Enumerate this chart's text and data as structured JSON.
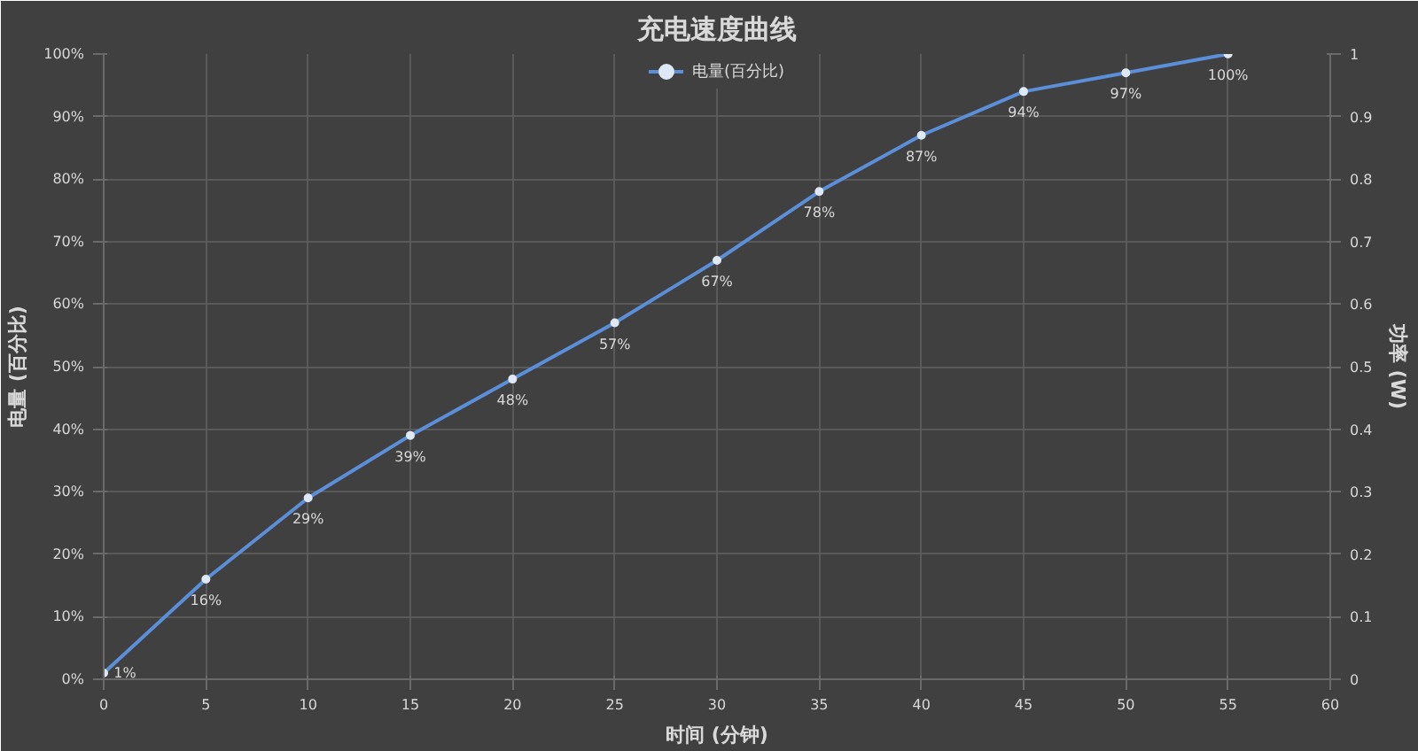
{
  "chart_data": {
    "type": "line",
    "title": "充电速度曲线",
    "xlabel": "时间 (分钟)",
    "ylabel": "电量 (百分比)",
    "y2label": "功率 (W)",
    "x": [
      0,
      5,
      10,
      15,
      20,
      25,
      30,
      35,
      40,
      45,
      50,
      55
    ],
    "series": [
      {
        "name": "电量(百分比)",
        "color": "#5b8fd9",
        "values": [
          1,
          16,
          29,
          39,
          48,
          57,
          67,
          78,
          87,
          94,
          97,
          100
        ],
        "value_labels": [
          "1%",
          "16%",
          "29%",
          "39%",
          "48%",
          "57%",
          "67%",
          "78%",
          "87%",
          "94%",
          "97%",
          "100%"
        ]
      }
    ],
    "xlim": [
      0,
      60
    ],
    "xticks": [
      0,
      5,
      10,
      15,
      20,
      25,
      30,
      35,
      40,
      45,
      50,
      55,
      60
    ],
    "ylim": [
      0,
      100
    ],
    "yticks": [
      {
        "value": 0,
        "label": "0%"
      },
      {
        "value": 10,
        "label": "10%"
      },
      {
        "value": 20,
        "label": "20%"
      },
      {
        "value": 30,
        "label": "30%"
      },
      {
        "value": 40,
        "label": "40%"
      },
      {
        "value": 50,
        "label": "50%"
      },
      {
        "value": 60,
        "label": "60%"
      },
      {
        "value": 70,
        "label": "70%"
      },
      {
        "value": 80,
        "label": "80%"
      },
      {
        "value": 90,
        "label": "90%"
      },
      {
        "value": 100,
        "label": "100%"
      }
    ],
    "y2lim": [
      0,
      1
    ],
    "y2ticks": [
      0,
      0.1,
      0.2,
      0.3,
      0.4,
      0.5,
      0.6,
      0.7,
      0.8,
      0.9,
      1
    ],
    "grid": true,
    "legend": "top",
    "marker": "circle",
    "line_style": "solid"
  }
}
